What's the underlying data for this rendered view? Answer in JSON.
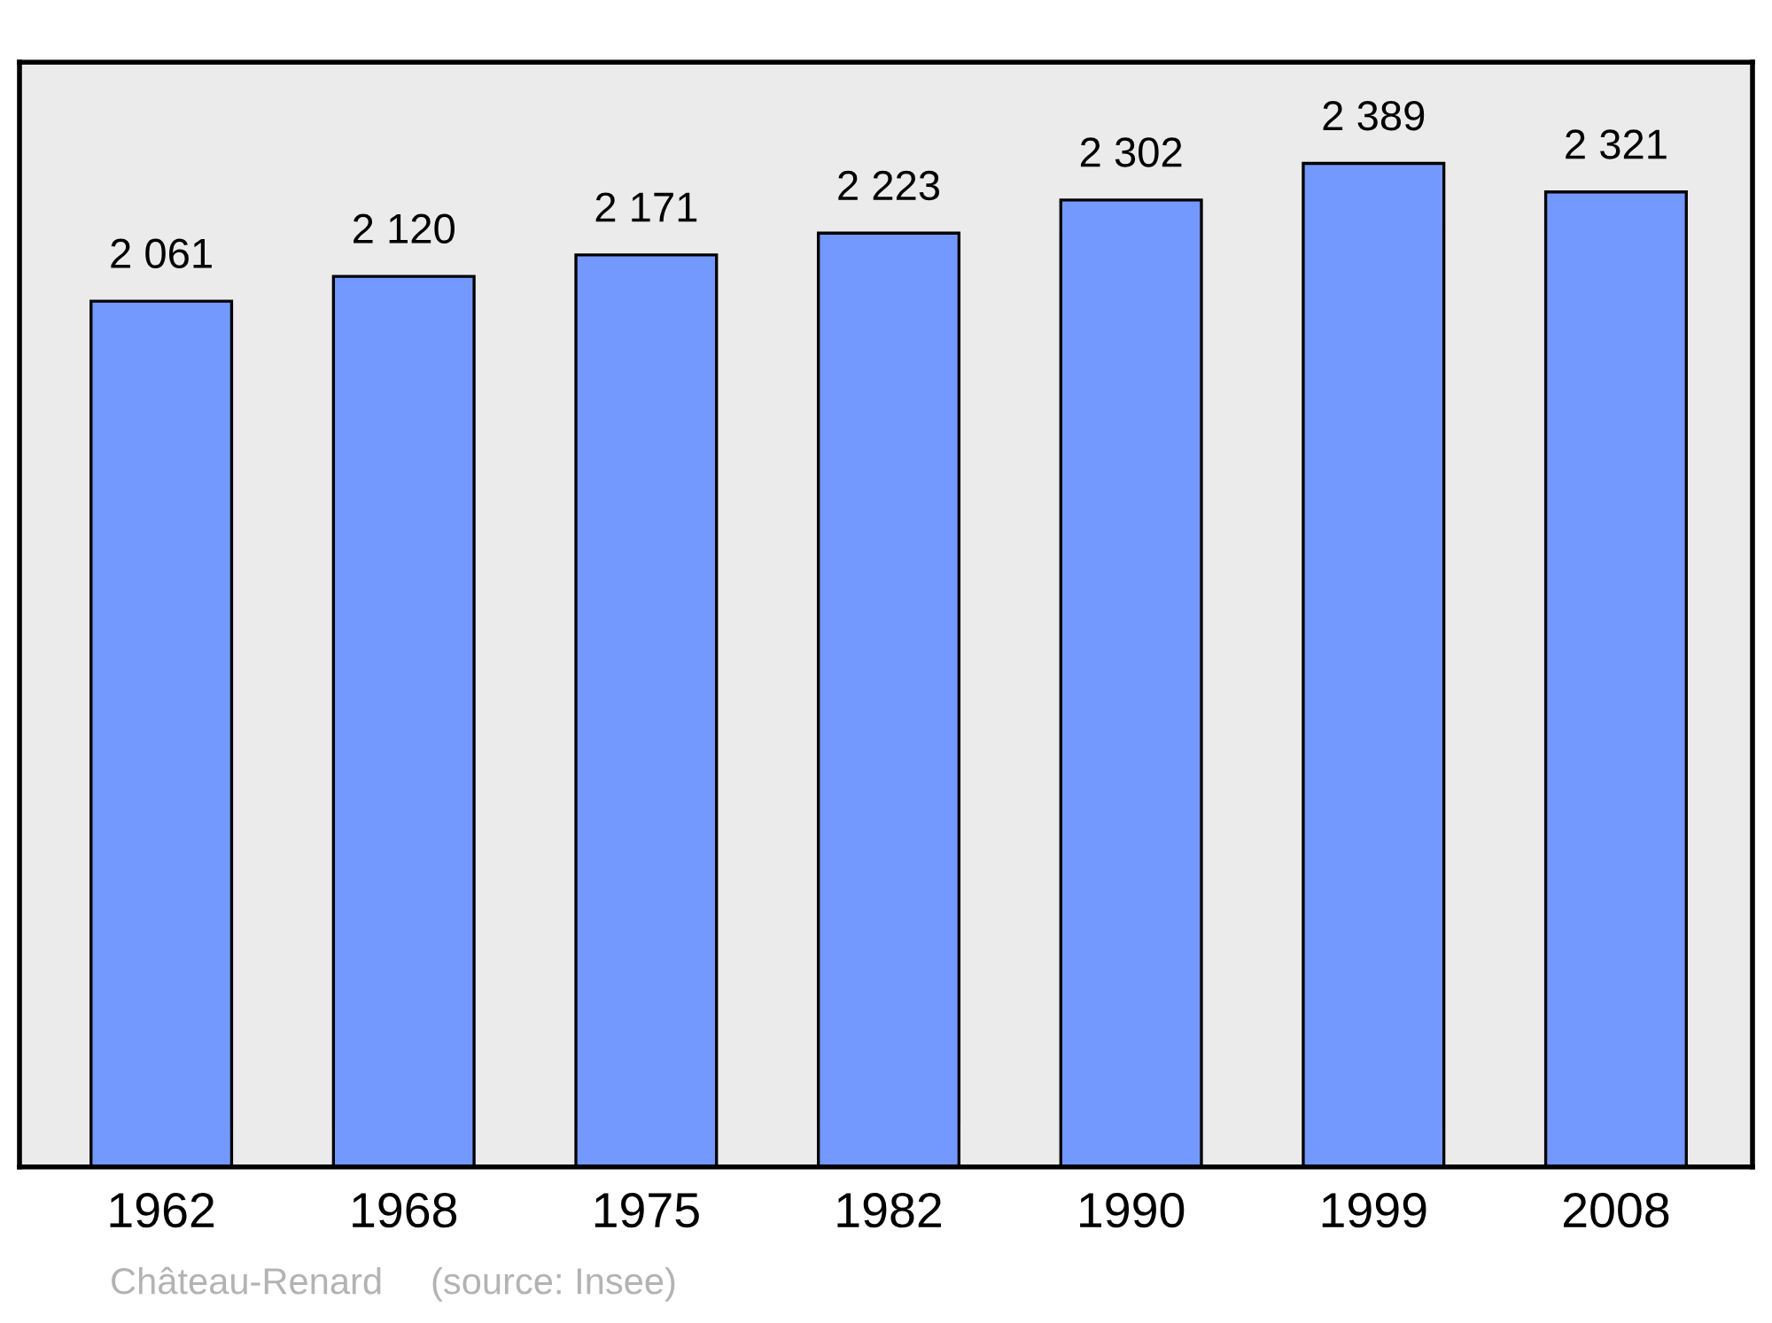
{
  "chart_data": {
    "type": "bar",
    "categories": [
      "1962",
      "1968",
      "1975",
      "1982",
      "1990",
      "1999",
      "2008"
    ],
    "values": [
      2061,
      2120,
      2171,
      2223,
      2302,
      2389,
      2321
    ],
    "value_labels": [
      "2 061",
      "2 120",
      "2 171",
      "2 223",
      "2 302",
      "2 389",
      "2 321"
    ],
    "color": "#7399ff",
    "ylim": [
      0,
      2630
    ],
    "grid": false,
    "legend": false,
    "annotations": [
      "Château-Renard",
      "(source: Insee)"
    ]
  }
}
